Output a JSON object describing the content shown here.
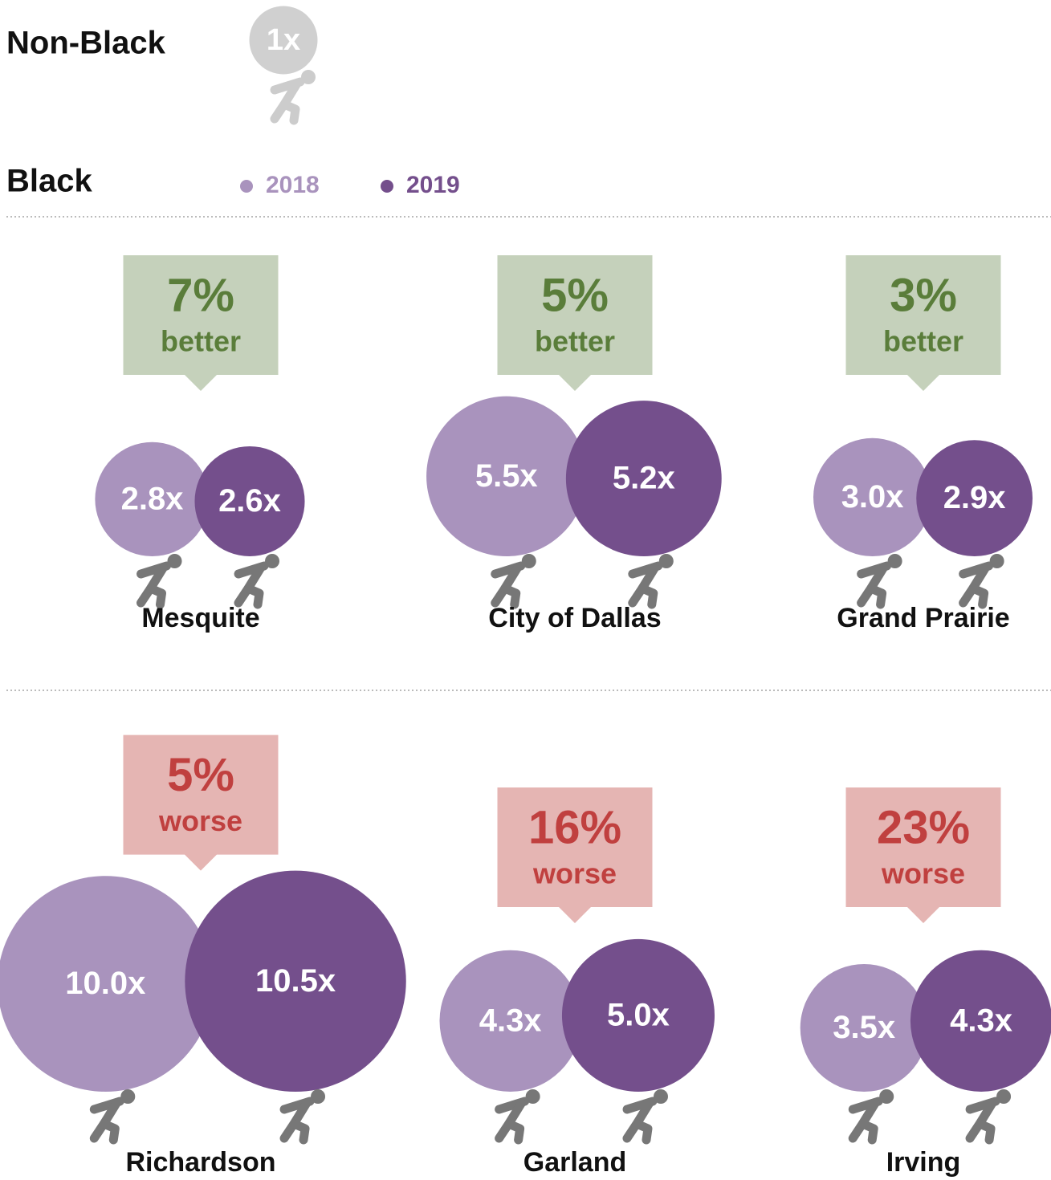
{
  "chart_data": {
    "type": "bubble",
    "reference": {
      "label": "Non-Black",
      "value": 1,
      "value_label": "1x",
      "color": "#d0d0d0"
    },
    "group_label": "Black",
    "series": [
      {
        "name": "2018",
        "color": "#a993bd"
      },
      {
        "name": "2019",
        "color": "#744f8c"
      }
    ],
    "cities": [
      {
        "name": "Mesquite",
        "values": [
          2.8,
          2.6
        ],
        "value_labels": [
          "2.8x",
          "2.6x"
        ],
        "change": "7%",
        "direction": "better"
      },
      {
        "name": "City of Dallas",
        "values": [
          5.5,
          5.2
        ],
        "value_labels": [
          "5.5x",
          "5.2x"
        ],
        "change": "5%",
        "direction": "better"
      },
      {
        "name": "Grand Prairie",
        "values": [
          3.0,
          2.9
        ],
        "value_labels": [
          "3.0x",
          "2.9x"
        ],
        "change": "3%",
        "direction": "better"
      },
      {
        "name": "Richardson",
        "values": [
          10.0,
          10.5
        ],
        "value_labels": [
          "10.0x",
          "10.5x"
        ],
        "change": "5%",
        "direction": "worse"
      },
      {
        "name": "Garland",
        "values": [
          4.3,
          5.0
        ],
        "value_labels": [
          "4.3x",
          "5.0x"
        ],
        "change": "16%",
        "direction": "worse"
      },
      {
        "name": "Irving",
        "values": [
          3.5,
          4.3
        ],
        "value_labels": [
          "3.5x",
          "4.3x"
        ],
        "change": "23%",
        "direction": "worse"
      }
    ]
  }
}
